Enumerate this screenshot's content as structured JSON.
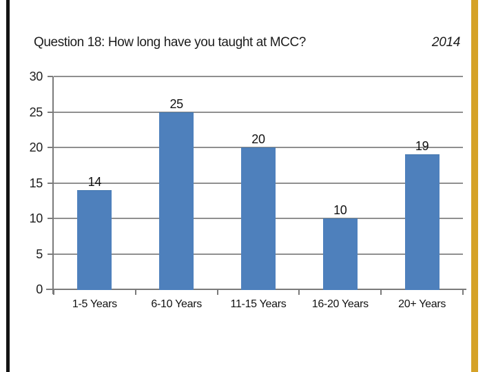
{
  "page": {
    "background": "#ffffff"
  },
  "decorations": {
    "left_edge_bar_color": "#131313",
    "right_edge_bar_color": "#D5A228"
  },
  "header": {
    "title": "Question 18: How long have you taught at MCC?",
    "year": "2014"
  },
  "chart_data": {
    "type": "bar",
    "title": "Question 18: How long have you taught at MCC?",
    "subtitle": "2014",
    "categories": [
      "1-5 Years",
      "6-10 Years",
      "11-15 Years",
      "16-20 Years",
      "20+ Years"
    ],
    "values": [
      14,
      25,
      20,
      10,
      19
    ],
    "data_labels": [
      "14",
      "25",
      "20",
      "10",
      "19"
    ],
    "xlabel": "",
    "ylabel": "",
    "ylim": [
      0,
      30
    ],
    "ytick_step": 5,
    "ytick_labels": [
      "0",
      "5",
      "10",
      "15",
      "20",
      "25",
      "30"
    ],
    "grid": true,
    "legend": "none",
    "bar_color": "#4E80BC",
    "bar_border_color": "#4477AE",
    "gridline_color": "#8F8F8F",
    "axis_color": "#7A7A7A",
    "label_color": "#111111"
  }
}
